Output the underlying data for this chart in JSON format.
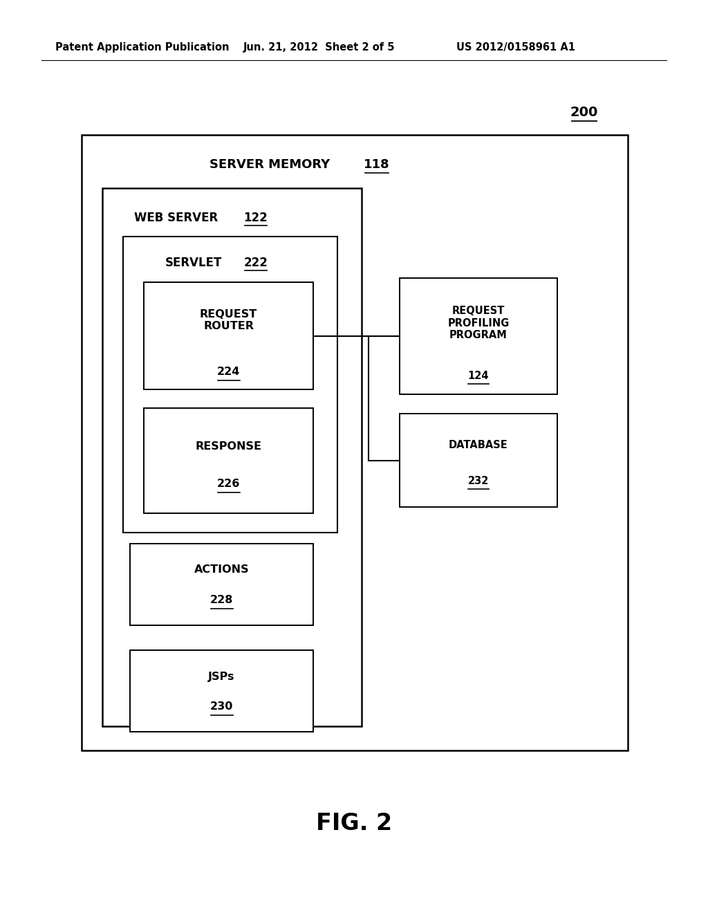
{
  "bg_color": "#ffffff",
  "header_text": "Patent Application Publication",
  "header_date": "Jun. 21, 2012  Sheet 2 of 5",
  "header_patent": "US 2012/0158961 A1",
  "fig_label": "FIG. 2",
  "ref_number": "200",
  "server_memory_label": "SERVER MEMORY",
  "server_memory_num": "118",
  "web_server_label": "WEB SERVER",
  "web_server_num": "122",
  "servlet_label": "SERVLET",
  "servlet_num": "222",
  "rr_label": "REQUEST\nROUTER",
  "rr_num": "224",
  "resp_label": "RESPONSE",
  "resp_num": "226",
  "act_label": "ACTIONS",
  "act_num": "228",
  "jsps_label": "JSPs",
  "jsps_num": "230",
  "rpp_label": "REQUEST\nPROFILING\nPROGRAM",
  "rpp_num": "124",
  "db_label": "DATABASE",
  "db_num": "232"
}
